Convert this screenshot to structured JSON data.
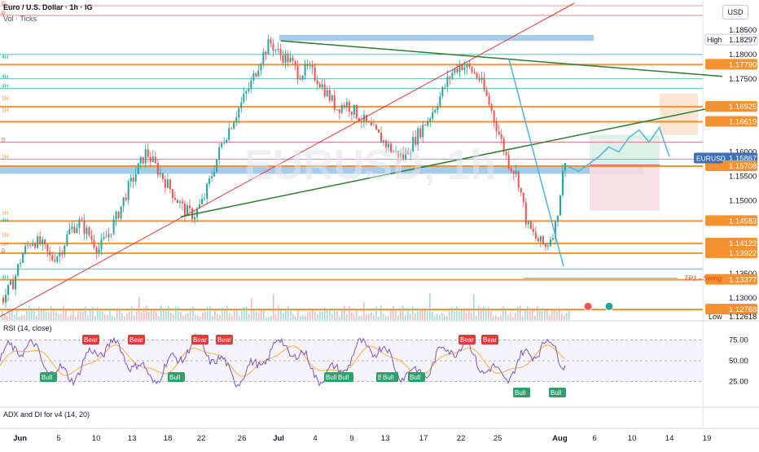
{
  "header": {
    "symbol_title": "Euro / U.S. Dollar · 1h · IG",
    "volume_label": "Vol · Ticks",
    "currency": "USD",
    "watermark": "EURUSD, 1h"
  },
  "price_labels": [
    {
      "label": "1.18500",
      "price": 1.185,
      "kind": "tick"
    },
    {
      "label": "1.18297",
      "price": 1.18297,
      "kind": "high"
    },
    {
      "label": "1.18000",
      "price": 1.18,
      "kind": "tick"
    },
    {
      "label": "1.17790",
      "price": 1.1779,
      "kind": "orange"
    },
    {
      "label": "1.17500",
      "price": 1.175,
      "kind": "tick"
    },
    {
      "label": "1.16925",
      "price": 1.16925,
      "kind": "orange"
    },
    {
      "label": "1.16619",
      "price": 1.16619,
      "kind": "orange"
    },
    {
      "label": "1.16000",
      "price": 1.16,
      "kind": "tick"
    },
    {
      "label": "1.15867",
      "price": 1.15867,
      "kind": "current"
    },
    {
      "label": "1.15708",
      "price": 1.15708,
      "kind": "orange"
    },
    {
      "label": "1.15500",
      "price": 1.155,
      "kind": "tick"
    },
    {
      "label": "1.15000",
      "price": 1.15,
      "kind": "tick"
    },
    {
      "label": "1.14583",
      "price": 1.14583,
      "kind": "orange"
    },
    {
      "label": "1.14122",
      "price": 1.14122,
      "kind": "orange"
    },
    {
      "label": "1.13922",
      "price": 1.13922,
      "kind": "orange"
    },
    {
      "label": "1.13500",
      "price": 1.135,
      "kind": "tick"
    },
    {
      "label": "1.13377",
      "price": 1.13377,
      "kind": "orange"
    },
    {
      "label": "1.13000",
      "price": 1.13,
      "kind": "tick"
    },
    {
      "label": "1.12768",
      "price": 1.12768,
      "kind": "orange"
    },
    {
      "label": "1.12618",
      "price": 1.12618,
      "kind": "tick"
    }
  ],
  "high_label": "High",
  "low_label": "Low",
  "symbol_badge": "EURUSD",
  "tp_label": "TP1 - Swing",
  "level_tags": [
    {
      "text": "D",
      "price": 1.19
    },
    {
      "text": "D",
      "price": 1.188
    },
    {
      "text": "4H",
      "price": 1.179
    },
    {
      "text": "4H",
      "price": 1.175
    },
    {
      "text": "4H",
      "price": 1.173
    },
    {
      "text": "1H",
      "price": 1.1705
    },
    {
      "text": "1H",
      "price": 1.168
    },
    {
      "text": "D",
      "price": 1.162
    },
    {
      "text": "1H",
      "price": 1.1585
    },
    {
      "text": "1H",
      "price": 1.147
    },
    {
      "text": "4H",
      "price": 1.1455
    },
    {
      "text": "1H",
      "price": 1.1425
    },
    {
      "text": "1H",
      "price": 1.1405
    },
    {
      "text": "D",
      "price": 1.1392
    },
    {
      "text": "4H",
      "price": 1.1338
    },
    {
      "text": "1H",
      "price": 1.129
    }
  ],
  "rsi": {
    "title": "RSI (14, close)",
    "levels": [
      "75.00",
      "50.00",
      "25.00"
    ],
    "signals": [
      {
        "text": "Bear",
        "type": "bear",
        "x": 111
      },
      {
        "text": "Bear",
        "type": "bear",
        "x": 167
      },
      {
        "text": "Bear",
        "type": "bear",
        "x": 245
      },
      {
        "text": "Bear",
        "type": "bear",
        "x": 275
      },
      {
        "text": "Bear",
        "type": "bear",
        "x": 573
      },
      {
        "text": "Bear",
        "type": "bear",
        "x": 601
      },
      {
        "text": "Bull",
        "type": "bull",
        "x": 59
      },
      {
        "text": "Bull",
        "type": "bull",
        "x": 216
      },
      {
        "text": "Bull",
        "type": "bull",
        "x": 408
      },
      {
        "text": "Bull",
        "type": "bull",
        "x": 423
      },
      {
        "text": "Bull",
        "type": "bull",
        "x": 472
      },
      {
        "text": "Bull",
        "type": "bull",
        "x": 478
      },
      {
        "text": "Bull",
        "type": "bull",
        "x": 511
      },
      {
        "text": "Bull",
        "type": "bull",
        "x": 640
      },
      {
        "text": "Bull",
        "type": "bull",
        "x": 684
      }
    ]
  },
  "adx_title": "ADX and DI for v4 (14, 20)",
  "x_axis": [
    {
      "label": "Jun",
      "x": 24,
      "bold": true
    },
    {
      "label": "5",
      "x": 72,
      "bold": false
    },
    {
      "label": "10",
      "x": 118,
      "bold": false
    },
    {
      "label": "13",
      "x": 162,
      "bold": false
    },
    {
      "label": "18",
      "x": 206,
      "bold": false
    },
    {
      "label": "22",
      "x": 247,
      "bold": false
    },
    {
      "label": "26",
      "x": 297,
      "bold": false
    },
    {
      "label": "Jul",
      "x": 343,
      "bold": true
    },
    {
      "label": "4",
      "x": 387,
      "bold": false
    },
    {
      "label": "9",
      "x": 432,
      "bold": false
    },
    {
      "label": "13",
      "x": 473,
      "bold": false
    },
    {
      "label": "17",
      "x": 520,
      "bold": false
    },
    {
      "label": "22",
      "x": 566,
      "bold": false
    },
    {
      "label": "25",
      "x": 611,
      "bold": false
    },
    {
      "label": "Aug",
      "x": 686,
      "bold": true
    },
    {
      "label": "6",
      "x": 730,
      "bold": false
    },
    {
      "label": "10",
      "x": 776,
      "bold": false
    },
    {
      "label": "14",
      "x": 822,
      "bold": false
    },
    {
      "label": "19",
      "x": 868,
      "bold": false
    }
  ],
  "chart_data": {
    "type": "candlestick",
    "title": "Euro / U.S. Dollar · 1h · IG",
    "ylim": [
      1.1255,
      1.1905
    ],
    "x_range": [
      "Jun",
      "19 Aug"
    ],
    "price_path": [
      [
        1.13,
        1.133,
        1.139,
        1.142,
        1.141,
        1.138,
        1.1395,
        1.144,
        1.1455,
        1.143,
        1.14,
        1.143
      ],
      [
        1.147,
        1.152,
        1.156,
        1.16,
        1.157,
        1.154,
        1.151,
        1.148,
        1.147,
        1.15,
        1.156,
        1.162
      ],
      [
        1.166,
        1.17,
        1.174,
        1.179,
        1.1825,
        1.18,
        1.179,
        1.176,
        1.177,
        1.175,
        1.172,
        1.169
      ],
      [
        1.17,
        1.168,
        1.166,
        1.164,
        1.162,
        1.16,
        1.159,
        1.162,
        1.165,
        1.168,
        1.172,
        1.176
      ],
      [
        1.178,
        1.177,
        1.175,
        1.17,
        1.164,
        1.158,
        1.155,
        1.145,
        1.142,
        1.1405,
        1.145,
        1.159
      ]
    ],
    "projection_path": [
      1.157,
      1.156,
      1.1575,
      1.159,
      1.161,
      1.16,
      1.163,
      1.1645,
      1.162,
      1.165,
      1.159
    ],
    "levels": [
      1.18297,
      1.1779,
      1.16925,
      1.16619,
      1.15708,
      1.14583,
      1.14122,
      1.13922,
      1.13377,
      1.12768
    ],
    "current_price": 1.15867,
    "high": 1.18297,
    "low": 1.12618
  }
}
